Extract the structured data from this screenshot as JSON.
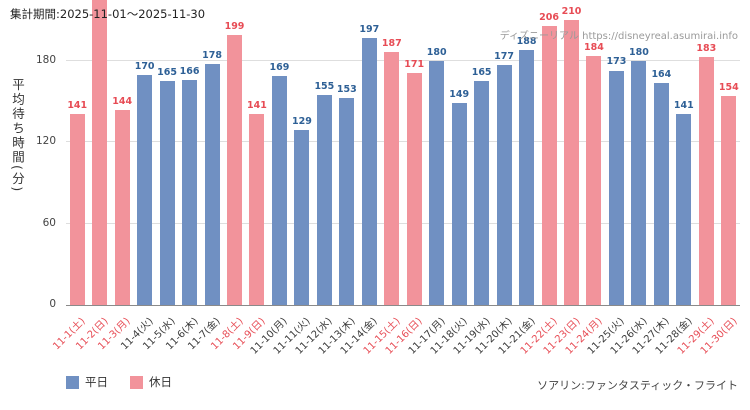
{
  "header": {
    "period_label": "集計期間:2025-11-01〜2025-11-30"
  },
  "watermark": "ディズニーリアル https://disneyreal.asumirai.info",
  "footer": {
    "attraction": "ソアリン:ファンタスティック・フライト"
  },
  "legend": [
    {
      "label": "平日",
      "type": "weekday"
    },
    {
      "label": "休日",
      "type": "holiday"
    }
  ],
  "colors": {
    "weekday": "#7090c2",
    "holiday": "#f2939b",
    "weekday_label": "#2e6096",
    "holiday_label": "#e74c55",
    "tick_weekday": "#3a3a3a",
    "tick_holiday": "#e74c55"
  },
  "chart_data": {
    "type": "bar",
    "title": "集計期間:2025-11-01〜2025-11-30",
    "xlabel": "",
    "ylabel": "平均待ち時間(分)",
    "ylim": [
      0,
      225
    ],
    "y_ticks": [
      0,
      60,
      120,
      180
    ],
    "grid": true,
    "legend_position": "bottom-left",
    "categories": [
      "11-1(土)",
      "11-2(日)",
      "11-3(月)",
      "11-4(火)",
      "11-5(水)",
      "11-6(木)",
      "11-7(金)",
      "11-8(土)",
      "11-9(日)",
      "11-10(月)",
      "11-11(火)",
      "11-12(水)",
      "11-13(木)",
      "11-14(金)",
      "11-15(土)",
      "11-16(日)",
      "11-17(月)",
      "11-18(火)",
      "11-19(水)",
      "11-20(木)",
      "11-21(金)",
      "11-22(土)",
      "11-23(日)",
      "11-24(月)",
      "11-25(火)",
      "11-26(水)",
      "11-27(木)",
      "11-28(金)",
      "11-29(土)",
      "11-30(日)"
    ],
    "values": [
      141,
      225,
      144,
      170,
      165,
      166,
      178,
      199,
      141,
      169,
      129,
      155,
      153,
      197,
      187,
      171,
      180,
      149,
      165,
      177,
      188,
      206,
      210,
      184,
      173,
      180,
      164,
      141,
      183,
      154
    ],
    "day_type": [
      "holiday",
      "holiday",
      "holiday",
      "weekday",
      "weekday",
      "weekday",
      "weekday",
      "holiday",
      "holiday",
      "weekday",
      "weekday",
      "weekday",
      "weekday",
      "weekday",
      "holiday",
      "holiday",
      "weekday",
      "weekday",
      "weekday",
      "weekday",
      "weekday",
      "holiday",
      "holiday",
      "holiday",
      "weekday",
      "weekday",
      "weekday",
      "weekday",
      "holiday",
      "holiday"
    ]
  }
}
